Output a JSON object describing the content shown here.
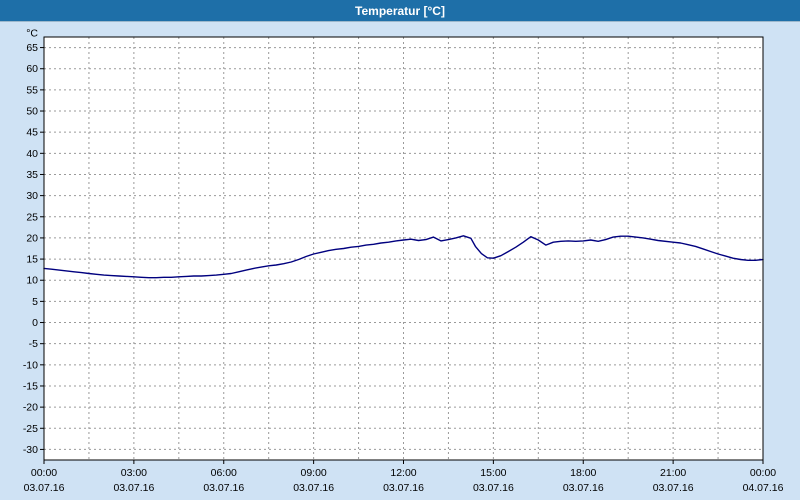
{
  "window": {
    "title": "Temperatur [°C]"
  },
  "colors": {
    "background": "#cfe2f4",
    "titlebar": "#1e6fa8",
    "titlebar_text": "#ffffff",
    "plot_background": "#ffffff",
    "grid": "#9a9a9a",
    "axis": "#000000",
    "tick_text": "#000000",
    "line": "#00007f"
  },
  "chart_data": {
    "type": "line",
    "title": "Temperatur [°C]",
    "y_unit_label": "°C",
    "ylim": [
      -32.5,
      67.5
    ],
    "y_tick_step": 5,
    "y_ticks": [
      65,
      60,
      55,
      50,
      45,
      40,
      35,
      30,
      25,
      20,
      15,
      10,
      5,
      0,
      -5,
      -10,
      -15,
      -20,
      -25,
      -30
    ],
    "x_hours_range": [
      0,
      24
    ],
    "x_minor_step_hours": 1.5,
    "x_ticks": [
      {
        "hour": 0,
        "time": "00:00",
        "date": "03.07.16"
      },
      {
        "hour": 3,
        "time": "03:00",
        "date": "03.07.16"
      },
      {
        "hour": 6,
        "time": "06:00",
        "date": "03.07.16"
      },
      {
        "hour": 9,
        "time": "09:00",
        "date": "03.07.16"
      },
      {
        "hour": 12,
        "time": "12:00",
        "date": "03.07.16"
      },
      {
        "hour": 15,
        "time": "15:00",
        "date": "03.07.16"
      },
      {
        "hour": 18,
        "time": "18:00",
        "date": "03.07.16"
      },
      {
        "hour": 21,
        "time": "21:00",
        "date": "03.07.16"
      },
      {
        "hour": 24,
        "time": "00:00",
        "date": "04.07.16"
      }
    ],
    "grid": true,
    "legend": "none",
    "series": [
      {
        "name": "Temperatur",
        "color": "#00007f",
        "points": [
          [
            0,
            12.8
          ],
          [
            0.25,
            12.6
          ],
          [
            0.5,
            12.4
          ],
          [
            0.75,
            12.2
          ],
          [
            1,
            12.0
          ],
          [
            1.25,
            11.8
          ],
          [
            1.5,
            11.6
          ],
          [
            1.75,
            11.4
          ],
          [
            2,
            11.2
          ],
          [
            2.25,
            11.1
          ],
          [
            2.5,
            11.0
          ],
          [
            2.75,
            10.9
          ],
          [
            3,
            10.8
          ],
          [
            3.25,
            10.7
          ],
          [
            3.5,
            10.6
          ],
          [
            3.75,
            10.6
          ],
          [
            4,
            10.7
          ],
          [
            4.25,
            10.7
          ],
          [
            4.5,
            10.8
          ],
          [
            4.75,
            10.9
          ],
          [
            5,
            11.0
          ],
          [
            5.25,
            11.0
          ],
          [
            5.5,
            11.1
          ],
          [
            5.75,
            11.2
          ],
          [
            6,
            11.4
          ],
          [
            6.25,
            11.6
          ],
          [
            6.5,
            12.0
          ],
          [
            6.75,
            12.4
          ],
          [
            7,
            12.8
          ],
          [
            7.25,
            13.1
          ],
          [
            7.5,
            13.4
          ],
          [
            7.75,
            13.6
          ],
          [
            8,
            13.9
          ],
          [
            8.25,
            14.3
          ],
          [
            8.5,
            14.9
          ],
          [
            8.75,
            15.6
          ],
          [
            9,
            16.2
          ],
          [
            9.25,
            16.6
          ],
          [
            9.5,
            17.0
          ],
          [
            9.75,
            17.3
          ],
          [
            10,
            17.5
          ],
          [
            10.25,
            17.8
          ],
          [
            10.5,
            18.0
          ],
          [
            10.75,
            18.3
          ],
          [
            11,
            18.5
          ],
          [
            11.25,
            18.8
          ],
          [
            11.5,
            19.0
          ],
          [
            11.75,
            19.3
          ],
          [
            12,
            19.5
          ],
          [
            12.25,
            19.7
          ],
          [
            12.5,
            19.4
          ],
          [
            12.75,
            19.6
          ],
          [
            13,
            20.2
          ],
          [
            13.25,
            19.3
          ],
          [
            13.5,
            19.6
          ],
          [
            13.75,
            20.0
          ],
          [
            14,
            20.5
          ],
          [
            14.25,
            19.9
          ],
          [
            14.4,
            18.0
          ],
          [
            14.6,
            16.3
          ],
          [
            14.8,
            15.3
          ],
          [
            15,
            15.2
          ],
          [
            15.25,
            15.8
          ],
          [
            15.5,
            16.8
          ],
          [
            15.75,
            17.8
          ],
          [
            16,
            19.0
          ],
          [
            16.25,
            20.3
          ],
          [
            16.5,
            19.5
          ],
          [
            16.75,
            18.3
          ],
          [
            17,
            19.0
          ],
          [
            17.25,
            19.2
          ],
          [
            17.5,
            19.3
          ],
          [
            17.75,
            19.2
          ],
          [
            18,
            19.3
          ],
          [
            18.25,
            19.5
          ],
          [
            18.5,
            19.2
          ],
          [
            18.75,
            19.6
          ],
          [
            19,
            20.2
          ],
          [
            19.25,
            20.4
          ],
          [
            19.5,
            20.4
          ],
          [
            19.75,
            20.2
          ],
          [
            20,
            20.0
          ],
          [
            20.25,
            19.7
          ],
          [
            20.5,
            19.4
          ],
          [
            21,
            19.0
          ],
          [
            21.25,
            18.8
          ],
          [
            21.5,
            18.4
          ],
          [
            21.75,
            18.0
          ],
          [
            22,
            17.4
          ],
          [
            22.25,
            16.8
          ],
          [
            22.5,
            16.2
          ],
          [
            22.75,
            15.7
          ],
          [
            23,
            15.2
          ],
          [
            23.25,
            14.9
          ],
          [
            23.5,
            14.7
          ],
          [
            23.75,
            14.7
          ],
          [
            24,
            14.9
          ]
        ]
      }
    ]
  }
}
